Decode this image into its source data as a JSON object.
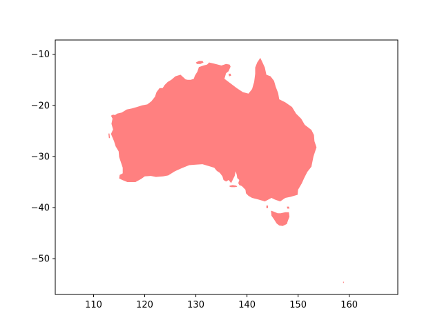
{
  "chart_data": {
    "type": "map",
    "title": "",
    "xlabel": "",
    "ylabel": "",
    "xlim": [
      102.5,
      169.5
    ],
    "ylim": [
      -57,
      -7.2
    ],
    "grid": false,
    "fill_color": "#ff8080",
    "axes_color": "#000000",
    "background": "#ffffff",
    "x_ticks": [
      {
        "value": 110,
        "label": "110"
      },
      {
        "value": 120,
        "label": "120"
      },
      {
        "value": 130,
        "label": "130"
      },
      {
        "value": 140,
        "label": "140"
      },
      {
        "value": 150,
        "label": "150"
      },
      {
        "value": 160,
        "label": "160"
      }
    ],
    "y_ticks": [
      {
        "value": -10,
        "label": "−10"
      },
      {
        "value": -20,
        "label": "−20"
      },
      {
        "value": -30,
        "label": "−30"
      },
      {
        "value": -40,
        "label": "−40"
      },
      {
        "value": -50,
        "label": "−50"
      }
    ],
    "regions": [
      {
        "name": "Australian mainland",
        "lonlat": [
          [
            113.4,
            -22.0
          ],
          [
            113.8,
            -21.8
          ],
          [
            114.2,
            -21.9
          ],
          [
            114.6,
            -21.6
          ],
          [
            115.5,
            -21.4
          ],
          [
            116.5,
            -20.8
          ],
          [
            117.5,
            -20.6
          ],
          [
            118.5,
            -20.3
          ],
          [
            119.5,
            -20.0
          ],
          [
            120.5,
            -19.8
          ],
          [
            121.3,
            -19.2
          ],
          [
            122.0,
            -18.3
          ],
          [
            122.3,
            -17.4
          ],
          [
            122.9,
            -16.6
          ],
          [
            123.5,
            -16.6
          ],
          [
            123.9,
            -16.0
          ],
          [
            124.5,
            -15.4
          ],
          [
            125.2,
            -15.0
          ],
          [
            126.0,
            -14.3
          ],
          [
            127.0,
            -14.0
          ],
          [
            128.0,
            -14.9
          ],
          [
            128.4,
            -15.0
          ],
          [
            129.0,
            -15.0
          ],
          [
            129.6,
            -14.8
          ],
          [
            129.8,
            -14.2
          ],
          [
            130.3,
            -13.4
          ],
          [
            130.6,
            -12.5
          ],
          [
            131.5,
            -12.2
          ],
          [
            132.2,
            -12.0
          ],
          [
            132.6,
            -11.6
          ],
          [
            133.5,
            -11.8
          ],
          [
            134.3,
            -12.0
          ],
          [
            135.0,
            -12.2
          ],
          [
            135.9,
            -11.9
          ],
          [
            136.6,
            -12.0
          ],
          [
            136.8,
            -12.4
          ],
          [
            136.4,
            -13.3
          ],
          [
            135.9,
            -13.7
          ],
          [
            135.6,
            -14.8
          ],
          [
            136.8,
            -15.7
          ],
          [
            138.0,
            -16.6
          ],
          [
            139.2,
            -17.4
          ],
          [
            140.3,
            -17.7
          ],
          [
            141.0,
            -16.8
          ],
          [
            141.4,
            -15.4
          ],
          [
            141.6,
            -13.8
          ],
          [
            141.6,
            -12.6
          ],
          [
            142.0,
            -11.6
          ],
          [
            142.6,
            -10.7
          ],
          [
            143.0,
            -11.5
          ],
          [
            143.5,
            -12.6
          ],
          [
            143.8,
            -14.0
          ],
          [
            144.6,
            -14.3
          ],
          [
            145.3,
            -15.2
          ],
          [
            145.6,
            -16.3
          ],
          [
            146.1,
            -17.6
          ],
          [
            146.3,
            -18.8
          ],
          [
            147.5,
            -19.4
          ],
          [
            148.8,
            -20.3
          ],
          [
            149.6,
            -21.6
          ],
          [
            150.6,
            -22.6
          ],
          [
            151.3,
            -23.8
          ],
          [
            152.6,
            -24.8
          ],
          [
            153.1,
            -25.8
          ],
          [
            153.2,
            -27.0
          ],
          [
            153.6,
            -28.2
          ],
          [
            153.0,
            -30.0
          ],
          [
            152.6,
            -32.0
          ],
          [
            151.8,
            -33.0
          ],
          [
            151.2,
            -34.2
          ],
          [
            150.7,
            -35.3
          ],
          [
            150.0,
            -36.5
          ],
          [
            149.9,
            -37.5
          ],
          [
            148.5,
            -37.9
          ],
          [
            147.5,
            -38.1
          ],
          [
            146.5,
            -38.8
          ],
          [
            145.4,
            -38.4
          ],
          [
            144.8,
            -38.1
          ],
          [
            143.5,
            -38.8
          ],
          [
            142.2,
            -38.4
          ],
          [
            141.0,
            -38.1
          ],
          [
            140.3,
            -37.7
          ],
          [
            139.8,
            -37.2
          ],
          [
            139.7,
            -36.5
          ],
          [
            139.0,
            -35.8
          ],
          [
            138.5,
            -35.6
          ],
          [
            138.3,
            -35.2
          ],
          [
            138.5,
            -34.6
          ],
          [
            138.1,
            -34.2
          ],
          [
            138.0,
            -33.6
          ],
          [
            137.8,
            -32.9
          ],
          [
            137.6,
            -33.8
          ],
          [
            137.3,
            -34.4
          ],
          [
            136.9,
            -35.2
          ],
          [
            136.4,
            -34.6
          ],
          [
            135.9,
            -34.9
          ],
          [
            135.4,
            -34.6
          ],
          [
            135.2,
            -33.9
          ],
          [
            134.7,
            -33.2
          ],
          [
            134.1,
            -32.8
          ],
          [
            133.6,
            -32.2
          ],
          [
            132.6,
            -31.9
          ],
          [
            131.3,
            -31.5
          ],
          [
            130.0,
            -31.6
          ],
          [
            128.7,
            -31.7
          ],
          [
            127.2,
            -32.3
          ],
          [
            125.9,
            -32.9
          ],
          [
            124.6,
            -33.7
          ],
          [
            123.6,
            -33.9
          ],
          [
            122.2,
            -34.0
          ],
          [
            121.2,
            -33.8
          ],
          [
            120.0,
            -33.9
          ],
          [
            119.3,
            -34.4
          ],
          [
            118.2,
            -35.0
          ],
          [
            117.3,
            -35.0
          ],
          [
            116.6,
            -35.0
          ],
          [
            115.6,
            -34.6
          ],
          [
            115.0,
            -34.3
          ],
          [
            115.1,
            -33.6
          ],
          [
            115.7,
            -33.3
          ],
          [
            115.7,
            -32.2
          ],
          [
            115.4,
            -31.3
          ],
          [
            115.0,
            -30.1
          ],
          [
            114.9,
            -29.0
          ],
          [
            114.3,
            -28.0
          ],
          [
            114.0,
            -27.0
          ],
          [
            113.7,
            -26.3
          ],
          [
            113.4,
            -25.6
          ],
          [
            113.8,
            -24.7
          ],
          [
            113.5,
            -23.6
          ],
          [
            113.7,
            -22.6
          ]
        ]
      },
      {
        "name": "Tasmania",
        "lonlat": [
          [
            144.7,
            -40.6
          ],
          [
            145.3,
            -40.8
          ],
          [
            146.0,
            -41.1
          ],
          [
            146.6,
            -41.1
          ],
          [
            147.5,
            -40.9
          ],
          [
            148.2,
            -40.9
          ],
          [
            148.3,
            -41.8
          ],
          [
            148.0,
            -42.6
          ],
          [
            147.8,
            -43.2
          ],
          [
            147.0,
            -43.6
          ],
          [
            146.3,
            -43.5
          ],
          [
            145.8,
            -43.1
          ],
          [
            145.3,
            -42.3
          ],
          [
            144.8,
            -41.6
          ]
        ]
      },
      {
        "name": "Kangaroo Island",
        "lonlat": [
          [
            136.6,
            -35.7
          ],
          [
            137.2,
            -35.6
          ],
          [
            137.9,
            -35.7
          ],
          [
            138.1,
            -35.9
          ],
          [
            137.6,
            -36.0
          ],
          [
            137.0,
            -36.0
          ],
          [
            136.6,
            -35.9
          ]
        ]
      },
      {
        "name": "Melville Island",
        "lonlat": [
          [
            130.0,
            -11.6
          ],
          [
            130.6,
            -11.3
          ],
          [
            131.3,
            -11.3
          ],
          [
            131.5,
            -11.6
          ],
          [
            130.9,
            -11.9
          ],
          [
            130.2,
            -11.9
          ]
        ]
      },
      {
        "name": "Groote Eylandt",
        "lonlat": [
          [
            136.4,
            -13.8
          ],
          [
            136.8,
            -13.8
          ],
          [
            136.9,
            -14.2
          ],
          [
            136.5,
            -14.3
          ]
        ]
      },
      {
        "name": "Flinders Island",
        "lonlat": [
          [
            147.8,
            -39.8
          ],
          [
            148.2,
            -39.8
          ],
          [
            148.3,
            -40.2
          ],
          [
            147.9,
            -40.2
          ]
        ]
      },
      {
        "name": "King Island",
        "lonlat": [
          [
            143.8,
            -39.6
          ],
          [
            144.1,
            -39.6
          ],
          [
            144.1,
            -40.1
          ],
          [
            143.8,
            -40.1
          ]
        ]
      },
      {
        "name": "Dirk Hartog Island",
        "lonlat": [
          [
            112.9,
            -25.5
          ],
          [
            113.1,
            -25.5
          ],
          [
            113.2,
            -26.4
          ],
          [
            113.0,
            -26.4
          ]
        ]
      },
      {
        "name": "Macquarie Island",
        "lonlat": [
          [
            158.8,
            -54.5
          ],
          [
            158.95,
            -54.5
          ],
          [
            158.95,
            -54.75
          ],
          [
            158.8,
            -54.75
          ]
        ]
      }
    ]
  }
}
